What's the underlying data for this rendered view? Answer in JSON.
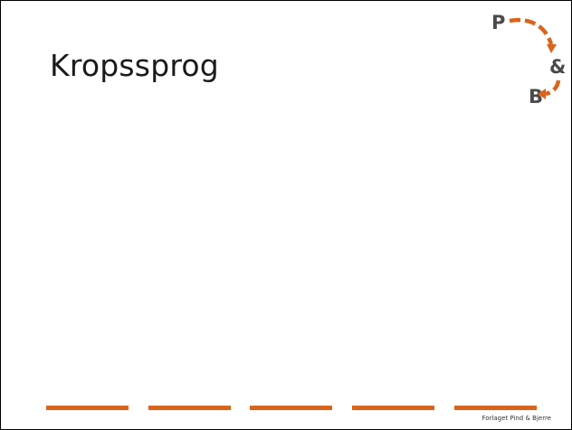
{
  "slide": {
    "title": "Kropssprog",
    "publisher": "Forlaget Pind & Bjerre"
  },
  "logo": {
    "top_letter": "P",
    "middle_letter": "&",
    "bottom_letter": "B",
    "accent_color": "#d9651b",
    "letter_color": "#4a4a4a"
  },
  "footer": {
    "bar_count": 5,
    "bar_color": "#d9651b"
  }
}
